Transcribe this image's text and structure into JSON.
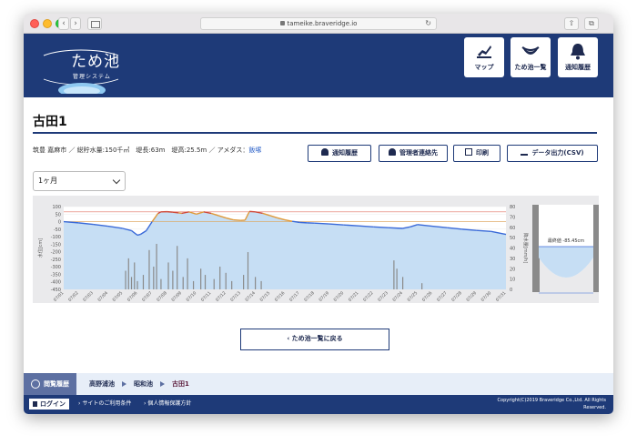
{
  "browser": {
    "url": "tameike.braveridge.io"
  },
  "header": {
    "logo_text": "ため池",
    "logo_sub": "管理システム",
    "nav": [
      {
        "label": "マップ",
        "icon": "map-marker-icon"
      },
      {
        "label": "ため池一覧",
        "icon": "pond-list-icon"
      },
      {
        "label": "通知履歴",
        "icon": "bell-icon"
      }
    ]
  },
  "page": {
    "title": "古田1",
    "meta_prefix": "筑豊 嘉麻市 ／ 総貯水量:150千㎥　堤長:63m　堤高:25.5m ／ アメダス：",
    "meta_link": "飯塚"
  },
  "actions": {
    "notify_history": "通知履歴",
    "manager_contact": "管理者連絡先",
    "print": "印刷",
    "export_csv": "データ出力(CSV)"
  },
  "range_select": {
    "value": "1ヶ月"
  },
  "chart_data": {
    "type": "line",
    "left_axis": {
      "label": "水位[cm]",
      "ticks": [
        100,
        50,
        0,
        -50,
        -100,
        -150,
        -200,
        -250,
        -300,
        -350,
        -400,
        -450
      ],
      "range": [
        -450,
        100
      ]
    },
    "right_axis": {
      "label": "降水量[mm/h]",
      "ticks": [
        80,
        70,
        60,
        50,
        40,
        30,
        20,
        10,
        0
      ],
      "range": [
        0,
        80
      ]
    },
    "x_ticks": [
      "07/01",
      "07/02",
      "07/03",
      "07/04",
      "07/05",
      "07/06",
      "07/07",
      "07/08",
      "07/09",
      "07/10",
      "07/11",
      "07/12",
      "07/13",
      "07/14",
      "07/15",
      "07/16",
      "07/17",
      "07/18",
      "07/19",
      "07/20",
      "07/21",
      "07/22",
      "07/23",
      "07/24",
      "07/25",
      "07/26",
      "07/27",
      "07/28",
      "07/29",
      "07/30",
      "07/31"
    ],
    "thresholds": [
      {
        "value": 65,
        "color": "#e07060"
      },
      {
        "value": 0,
        "color": "#e0a050"
      }
    ],
    "water_level": {
      "x": [
        1.0,
        2.0,
        3.0,
        4.0,
        5.0,
        5.6,
        6.0,
        6.2,
        6.6,
        7.0,
        7.4,
        7.6,
        8.0,
        8.4,
        8.8,
        9.0,
        9.5,
        10.0,
        10.5,
        11.0,
        11.5,
        12.0,
        12.5,
        13.0,
        13.3,
        13.6,
        14.0,
        14.5,
        15.0,
        15.5,
        16.0,
        16.5,
        17.0,
        17.5,
        18.0,
        19.0,
        20.0,
        21.0,
        22.0,
        23.0,
        24.0,
        24.5,
        25.0,
        26.0,
        27.0,
        28.0,
        29.0,
        30.0,
        31.0
      ],
      "y": [
        0,
        -8,
        -18,
        -30,
        -45,
        -60,
        -90,
        -85,
        -60,
        0,
        55,
        65,
        66,
        63,
        58,
        55,
        65,
        50,
        65,
        55,
        40,
        25,
        12,
        8,
        10,
        68,
        65,
        55,
        40,
        25,
        12,
        2,
        -5,
        -8,
        -10,
        -15,
        -22,
        -28,
        -35,
        -40,
        -45,
        -35,
        -20,
        -30,
        -40,
        -50,
        -58,
        -65,
        -85
      ]
    },
    "rainfall": {
      "x": [
        5.2,
        5.4,
        5.6,
        5.8,
        6.0,
        6.4,
        6.8,
        7.1,
        7.3,
        7.6,
        8.1,
        8.4,
        8.7,
        9.1,
        9.4,
        9.8,
        10.3,
        10.6,
        11.2,
        11.6,
        12.0,
        12.4,
        13.2,
        13.5,
        14.0,
        14.4,
        23.4,
        23.6,
        24.0,
        25.3
      ],
      "y": [
        18,
        30,
        12,
        26,
        8,
        14,
        38,
        22,
        44,
        10,
        26,
        18,
        42,
        12,
        30,
        8,
        20,
        14,
        10,
        22,
        16,
        8,
        14,
        36,
        12,
        8,
        28,
        20,
        12,
        6
      ]
    },
    "current_value_label": "最終値 -85.45cm"
  },
  "back_button": "ため池一覧に戻る",
  "breadcrumb": {
    "label": "閲覧履歴",
    "items": [
      "高野浦池",
      "昭和池",
      "古田1"
    ]
  },
  "footer": {
    "login": "ログイン",
    "links": [
      "サイトのご利用条件",
      "個人情報保護方針"
    ],
    "copyright_1": "Copyright(C)2019 Braveridge Co.,Ltd. All Rights",
    "copyright_2": "Reserved."
  }
}
